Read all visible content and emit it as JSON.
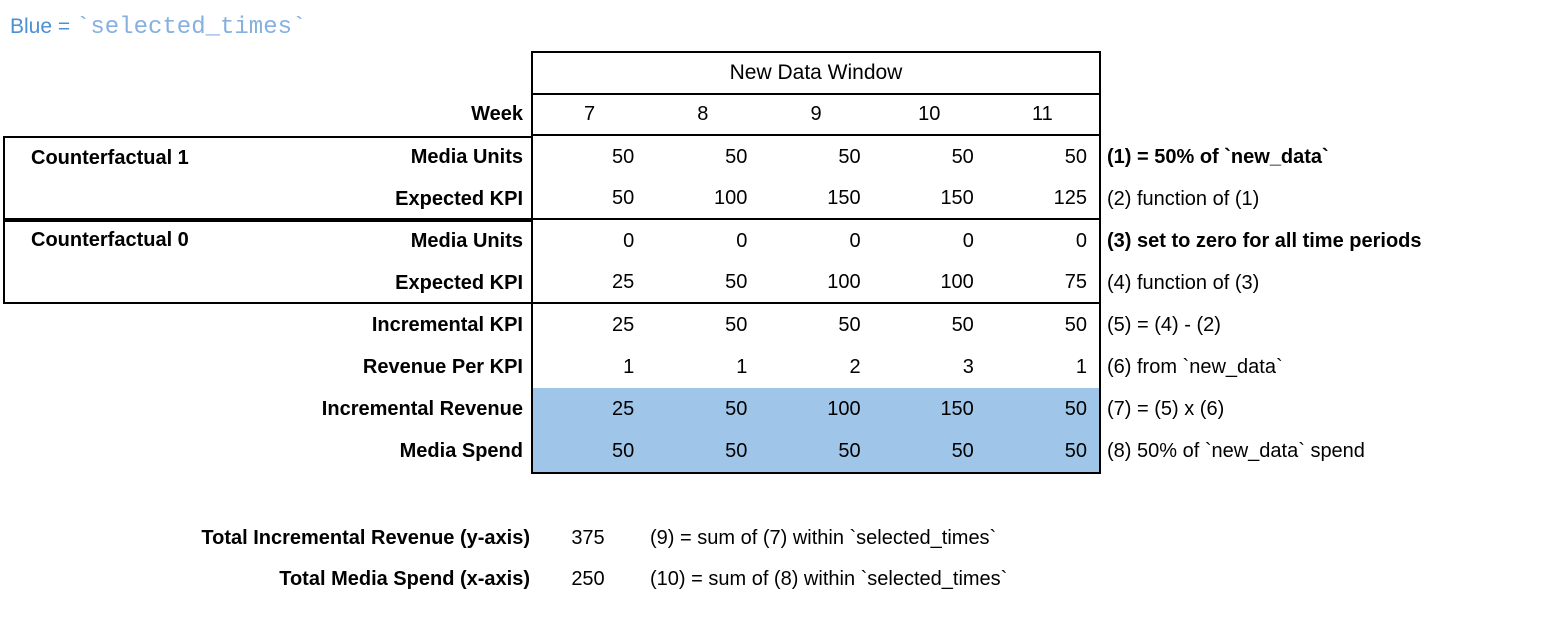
{
  "legend": {
    "label": "Blue = ",
    "code": "`selected_times`"
  },
  "chart_data": {
    "type": "table",
    "title": "New Data Window",
    "week_label": "Week",
    "weeks": [
      7,
      8,
      9,
      10,
      11
    ],
    "groups": [
      "Counterfactual 1",
      "Counterfactual 0"
    ],
    "rows": [
      {
        "label": "Media Units",
        "values": [
          50,
          50,
          50,
          50,
          50
        ],
        "note": "(1) = 50% of `new_data`",
        "note_bold": true,
        "highlighted": false
      },
      {
        "label": "Expected KPI",
        "values": [
          50,
          100,
          150,
          150,
          125
        ],
        "note": "(2) function of (1)",
        "note_bold": false,
        "highlighted": false
      },
      {
        "label": "Media Units",
        "values": [
          0,
          0,
          0,
          0,
          0
        ],
        "note": "(3) set to zero for all time periods",
        "note_bold": true,
        "highlighted": false
      },
      {
        "label": "Expected KPI",
        "values": [
          25,
          50,
          100,
          100,
          75
        ],
        "note": "(4) function of (3)",
        "note_bold": false,
        "highlighted": false
      },
      {
        "label": "Incremental KPI",
        "values": [
          25,
          50,
          50,
          50,
          50
        ],
        "note": "(5) = (4) - (2)",
        "note_bold": false,
        "highlighted": false
      },
      {
        "label": "Revenue Per KPI",
        "values": [
          1,
          1,
          2,
          3,
          1
        ],
        "note": "(6) from `new_data`",
        "note_bold": false,
        "highlighted": false
      },
      {
        "label": "Incremental Revenue",
        "values": [
          25,
          50,
          100,
          150,
          50
        ],
        "note": "(7) = (5) x (6)",
        "note_bold": false,
        "highlighted": true
      },
      {
        "label": "Media Spend",
        "values": [
          50,
          50,
          50,
          50,
          50
        ],
        "note": "(8) 50% of `new_data` spend",
        "note_bold": false,
        "highlighted": true
      }
    ],
    "totals": [
      {
        "label": "Total Incremental Revenue (y-axis)",
        "value": 375,
        "note": "(9) = sum of (7) within `selected_times`"
      },
      {
        "label": "Total Media Spend (x-axis)",
        "value": 250,
        "note": "(10) = sum of (8) within `selected_times`"
      }
    ],
    "highlight_meaning": "selected_times"
  },
  "colors": {
    "highlight": "#9fc5e8",
    "legend-blue": "#4a90d4",
    "legend-code-blue": "#85b0e0"
  }
}
